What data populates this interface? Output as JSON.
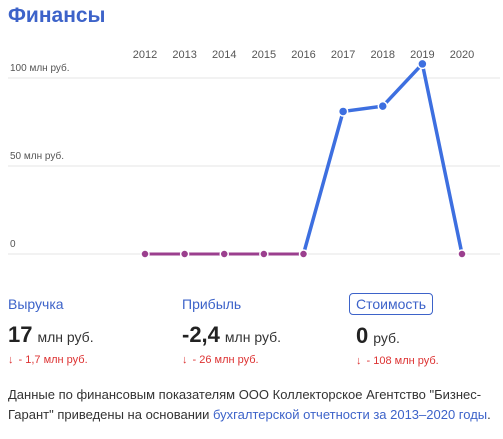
{
  "title": "Финансы",
  "chart_data": {
    "type": "line",
    "x": [
      "2012",
      "2013",
      "2014",
      "2015",
      "2016",
      "2017",
      "2018",
      "2019",
      "2020"
    ],
    "series": [
      {
        "values": [
          0,
          0,
          0,
          0,
          0,
          81,
          84,
          108,
          0
        ]
      }
    ],
    "y_ticks": [
      {
        "value": 100,
        "label": "100 млн руб."
      },
      {
        "value": 50,
        "label": "50 млн руб."
      },
      {
        "value": 0,
        "label": "0"
      }
    ],
    "ylim": [
      0,
      110
    ],
    "grid": true,
    "colors": {
      "line": "#3d6fe0",
      "zero_segment": "#9b3f8e",
      "marker_fill": "#9b3f8e",
      "marker_stroke": "#ffffff",
      "grid": "#e6e6e6"
    }
  },
  "metrics": [
    {
      "label": "Выручка",
      "value": "17",
      "unit": "млн руб.",
      "delta": "- 1,7 млн руб."
    },
    {
      "label": "Прибыль",
      "value": "-2,4",
      "unit": "млн руб.",
      "delta": "- 26 млн руб."
    },
    {
      "label": "Стоимость",
      "value": "0",
      "unit": "руб.",
      "delta": "- 108 млн руб."
    }
  ],
  "note": {
    "text": "Данные по финансовым показателям ООО Коллекторское Агентство \"Бизнес-Гарант\" приведены на основании ",
    "link": "бухгалтерской отчетности за 2013–2020 годы",
    "end": "."
  }
}
